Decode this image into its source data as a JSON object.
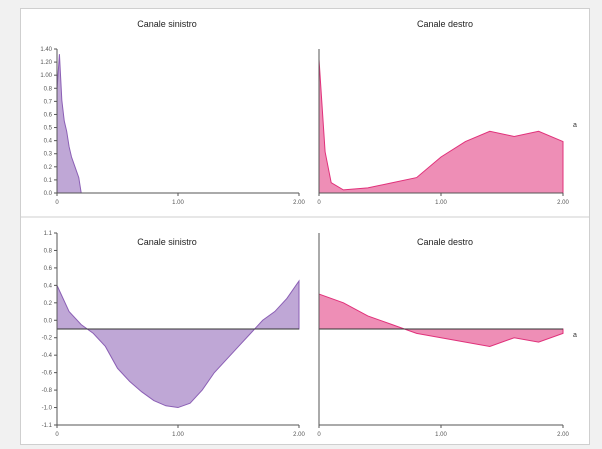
{
  "colors": {
    "left": "#8b5fb5",
    "right": "#e0317a",
    "axis": "#555555",
    "background": "#ffffff"
  },
  "chart_data": [
    {
      "type": "area",
      "title": "Canale sinistro",
      "x_ticks": [
        "0",
        "1.00",
        "2.00"
      ],
      "xlim": [
        0,
        2
      ],
      "y_ticks": [
        "0.0",
        "0.1",
        "0.2",
        "0.3",
        "0.4",
        "0.5",
        "0.6",
        "0.7",
        "0.8",
        "1.00",
        "1.20",
        "1.40"
      ],
      "ylim": [
        0,
        1.4
      ],
      "series": [
        {
          "x": [
            0.0,
            0.02,
            0.04,
            0.06,
            0.08,
            0.1,
            0.12,
            0.15,
            0.18,
            0.2,
            2.0
          ],
          "values": [
            1.0,
            1.35,
            0.9,
            0.7,
            0.6,
            0.45,
            0.35,
            0.25,
            0.15,
            0.0,
            0.0
          ]
        }
      ]
    },
    {
      "type": "area",
      "title": "Canale destro",
      "x_ticks": [
        "0",
        "1.00",
        "2.00"
      ],
      "xlim": [
        0,
        2
      ],
      "series": [
        {
          "x": [
            0.0,
            0.05,
            0.1,
            0.2,
            0.4,
            0.6,
            0.8,
            1.0,
            1.2,
            1.4,
            1.6,
            1.8,
            2.0
          ],
          "values": [
            1.3,
            0.4,
            0.1,
            0.03,
            0.05,
            0.1,
            0.15,
            0.35,
            0.5,
            0.6,
            0.55,
            0.6,
            0.5
          ]
        }
      ]
    },
    {
      "type": "area",
      "title": "Canale sinistro",
      "x_ticks": [
        "0",
        "1.00",
        "2.00"
      ],
      "xlim": [
        0,
        2
      ],
      "y_ticks": [
        "1.1",
        "0.8",
        "0.6",
        "0.4",
        "0.2",
        "0.0",
        "-0.2",
        "-0.4",
        "-0.6",
        "-0.8",
        "-1.0",
        "-1.1"
      ],
      "ylim": [
        -1.1,
        1.1
      ],
      "series": [
        {
          "x": [
            0.0,
            0.1,
            0.2,
            0.3,
            0.4,
            0.5,
            0.6,
            0.7,
            0.8,
            0.9,
            1.0,
            1.1,
            1.2,
            1.3,
            1.4,
            1.5,
            1.6,
            1.7,
            1.8,
            1.9,
            2.0
          ],
          "values": [
            0.5,
            0.2,
            0.05,
            -0.05,
            -0.2,
            -0.45,
            -0.6,
            -0.72,
            -0.82,
            -0.88,
            -0.9,
            -0.85,
            -0.7,
            -0.5,
            -0.35,
            -0.2,
            -0.05,
            0.1,
            0.2,
            0.35,
            0.55
          ]
        }
      ]
    },
    {
      "type": "area",
      "title": "Canale destro",
      "x_ticks": [
        "0",
        "1.00",
        "2.00"
      ],
      "xlim": [
        0,
        2
      ],
      "series": [
        {
          "x": [
            0.0,
            0.2,
            0.4,
            0.6,
            0.8,
            1.0,
            1.2,
            1.4,
            1.6,
            1.8,
            2.0
          ],
          "values": [
            0.4,
            0.3,
            0.15,
            0.05,
            -0.05,
            -0.1,
            -0.15,
            -0.2,
            -0.1,
            -0.15,
            -0.05
          ]
        }
      ]
    }
  ],
  "side_marks": [
    "a",
    "a"
  ]
}
